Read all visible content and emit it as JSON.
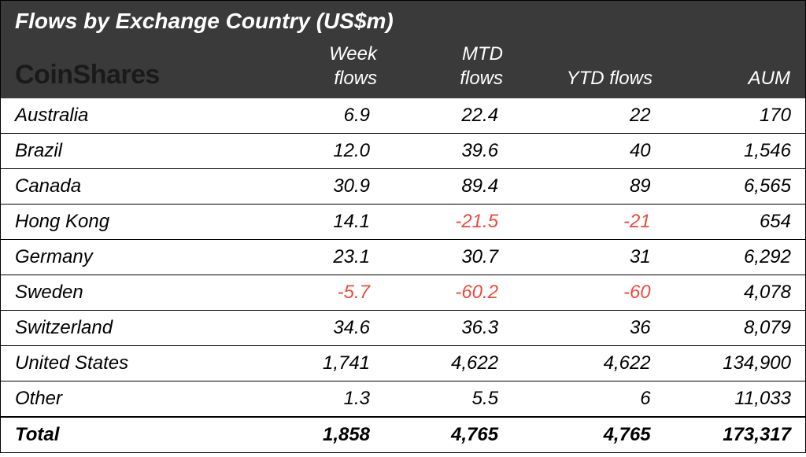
{
  "table": {
    "type": "table",
    "title": "Flows by Exchange Country (US$m)",
    "logo_text": "CoinShares",
    "header_bg": "#3a3a3a",
    "header_fg": "#ffffff",
    "negative_color": "#e84c3d",
    "body_bg": "#ffffff",
    "border_color": "#000000",
    "font_family": "Arial",
    "title_fontsize": 28,
    "header_fontsize": 24,
    "body_fontsize": 24,
    "logo_fontsize": 34,
    "columns": [
      {
        "key": "country",
        "label": "",
        "align": "left"
      },
      {
        "key": "week",
        "label_line1": "Week",
        "label_line2": "flows",
        "align": "right"
      },
      {
        "key": "mtd",
        "label_line1": "MTD",
        "label_line2": "flows",
        "align": "right"
      },
      {
        "key": "ytd",
        "label": "YTD flows",
        "align": "right"
      },
      {
        "key": "aum",
        "label": "AUM",
        "align": "right"
      }
    ],
    "rows": [
      {
        "country": "Australia",
        "week": "6.9",
        "mtd": "22.4",
        "ytd": "22",
        "aum": "170"
      },
      {
        "country": "Brazil",
        "week": "12.0",
        "mtd": "39.6",
        "ytd": "40",
        "aum": "1,546"
      },
      {
        "country": "Canada",
        "week": "30.9",
        "mtd": "89.4",
        "ytd": "89",
        "aum": "6,565"
      },
      {
        "country": "Hong Kong",
        "week": "14.1",
        "mtd": "-21.5",
        "mtd_neg": true,
        "ytd": "-21",
        "ytd_neg": true,
        "aum": "654"
      },
      {
        "country": "Germany",
        "week": "23.1",
        "mtd": "30.7",
        "ytd": "31",
        "aum": "6,292"
      },
      {
        "country": "Sweden",
        "week": "-5.7",
        "week_neg": true,
        "mtd": "-60.2",
        "mtd_neg": true,
        "ytd": "-60",
        "ytd_neg": true,
        "aum": "4,078"
      },
      {
        "country": "Switzerland",
        "week": "34.6",
        "mtd": "36.3",
        "ytd": "36",
        "aum": "8,079"
      },
      {
        "country": "United States",
        "week": "1,741",
        "mtd": "4,622",
        "ytd": "4,622",
        "aum": "134,900"
      },
      {
        "country": "Other",
        "week": "1.3",
        "mtd": "5.5",
        "ytd": "6",
        "aum": "11,033"
      }
    ],
    "total": {
      "country": "Total",
      "week": "1,858",
      "mtd": "4,765",
      "ytd": "4,765",
      "aum": "173,317"
    }
  }
}
